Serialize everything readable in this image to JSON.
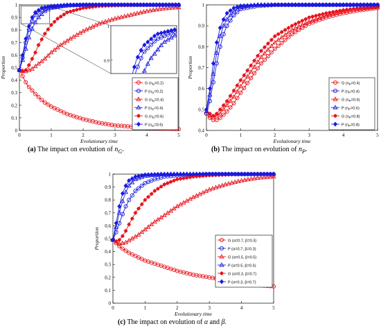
{
  "captions": [
    {
      "tag": "(a)",
      "text": "The impact on evolution of",
      "symbol": "n",
      "subscript": "G",
      "tail": "."
    },
    {
      "tag": "(b)",
      "text": "The impact on evolution of",
      "symbol": "n",
      "subscript": "P",
      "tail": "."
    },
    {
      "tag": "(c)",
      "text": "The impact on evolution of",
      "symbol": "α",
      "mid": "and",
      "symbol2": "β",
      "tail": "."
    }
  ],
  "colors": {
    "G": "#e8141c",
    "P": "#1a1adf"
  },
  "chart_data": [
    {
      "id": "a",
      "type": "line",
      "xlabel": "Evolutionary time",
      "ylabel": "Proportion",
      "xlim": [
        0,
        5
      ],
      "ylim": [
        0,
        1
      ],
      "xticks": [
        "0",
        "1",
        "2",
        "3",
        "4",
        "5"
      ],
      "yticks": [
        "0",
        "0.1",
        "0.2",
        "0.3",
        "0.4",
        "0.5",
        "0.6",
        "0.7",
        "0.8",
        "0.9",
        "1"
      ],
      "grid": false,
      "legend_position": "bottom-right",
      "series": [
        {
          "name": "G (n_G=0.2)",
          "label": "G (n",
          "sub": "G",
          "tail": "=0.2)",
          "group": "G",
          "marker": "circle",
          "x": [
            0,
            0.25,
            0.5,
            0.75,
            1,
            1.5,
            2,
            2.5,
            3,
            3.5,
            4,
            4.5,
            5
          ],
          "values": [
            0.48,
            0.36,
            0.29,
            0.23,
            0.19,
            0.13,
            0.09,
            0.06,
            0.04,
            0.03,
            0.02,
            0.015,
            0.01
          ]
        },
        {
          "name": "P (n_G=0.2)",
          "label": "P (n",
          "sub": "G",
          "tail": "=0.2)",
          "group": "P",
          "marker": "circle",
          "x": [
            0,
            0.1,
            0.2,
            0.3,
            0.4,
            0.5,
            0.7,
            1,
            1.5,
            2,
            3,
            4,
            5
          ],
          "values": [
            0.48,
            0.58,
            0.7,
            0.8,
            0.87,
            0.92,
            0.96,
            0.985,
            0.995,
            1,
            1,
            1,
            1
          ]
        },
        {
          "name": "G (n_G=0.4)",
          "label": "G (n",
          "sub": "G",
          "tail": "=0.4)",
          "group": "G",
          "marker": "triangle",
          "x": [
            0,
            0.2,
            0.4,
            0.6,
            0.8,
            1,
            1.3,
            1.6,
            2,
            2.5,
            3,
            3.5,
            4,
            4.5,
            5
          ],
          "values": [
            0.48,
            0.47,
            0.49,
            0.53,
            0.57,
            0.62,
            0.68,
            0.73,
            0.79,
            0.85,
            0.89,
            0.92,
            0.95,
            0.97,
            0.98
          ]
        },
        {
          "name": "P (n_G=0.4)",
          "label": "P (n",
          "sub": "G",
          "tail": "=0.4)",
          "group": "P",
          "marker": "triangle",
          "x": [
            0,
            0.1,
            0.2,
            0.3,
            0.4,
            0.5,
            0.6,
            0.8,
            1,
            1.5,
            2,
            3,
            4,
            5
          ],
          "values": [
            0.48,
            0.56,
            0.65,
            0.74,
            0.81,
            0.86,
            0.9,
            0.95,
            0.975,
            0.995,
            1,
            1,
            1,
            1
          ]
        },
        {
          "name": "G (n_G=0.6)",
          "label": "G (n",
          "sub": "G",
          "tail": "=0.6)",
          "group": "G",
          "marker": "star",
          "x": [
            0,
            0.1,
            0.2,
            0.3,
            0.4,
            0.5,
            0.6,
            0.8,
            1,
            1.2,
            1.5,
            2,
            2.5,
            3,
            4,
            5
          ],
          "values": [
            0.48,
            0.47,
            0.48,
            0.52,
            0.57,
            0.62,
            0.68,
            0.77,
            0.84,
            0.89,
            0.94,
            0.975,
            0.99,
            0.995,
            1,
            1
          ]
        },
        {
          "name": "P (n_G=0.6)",
          "label": "P (n",
          "sub": "G",
          "tail": "=0.6)",
          "group": "P",
          "marker": "diamond",
          "x": [
            0,
            0.1,
            0.2,
            0.3,
            0.4,
            0.5,
            0.7,
            1,
            1.5,
            2,
            3,
            4,
            5
          ],
          "values": [
            0.48,
            0.6,
            0.73,
            0.83,
            0.9,
            0.94,
            0.975,
            0.99,
            1,
            1,
            1,
            1,
            1
          ]
        }
      ]
    },
    {
      "id": "b",
      "type": "line",
      "xlabel": "Evolutionary time",
      "ylabel": "Proportion",
      "xlim": [
        0,
        5
      ],
      "ylim": [
        0.4,
        1
      ],
      "xticks": [
        "0",
        "1",
        "2",
        "3",
        "4",
        "5"
      ],
      "yticks": [
        "0.4",
        "0.5",
        "0.6",
        "0.7",
        "0.8",
        "0.9",
        "1"
      ],
      "grid": false,
      "legend_position": "bottom-right",
      "series": [
        {
          "name": "G (n_P=0.4)",
          "label": "G (n",
          "sub": "P",
          "tail": "=0.4)",
          "group": "G",
          "marker": "circle",
          "x": [
            0,
            0.1,
            0.2,
            0.3,
            0.4,
            0.6,
            0.8,
            1,
            1.3,
            1.6,
            2,
            2.5,
            3,
            3.5,
            4,
            4.5,
            5
          ],
          "values": [
            0.48,
            0.46,
            0.45,
            0.45,
            0.46,
            0.49,
            0.53,
            0.58,
            0.65,
            0.72,
            0.79,
            0.86,
            0.91,
            0.94,
            0.96,
            0.975,
            0.985
          ]
        },
        {
          "name": "P (n_P=0.4)",
          "label": "P (n",
          "sub": "P",
          "tail": "=0.4)",
          "group": "P",
          "marker": "circle",
          "x": [
            0,
            0.1,
            0.2,
            0.3,
            0.4,
            0.5,
            0.6,
            0.8,
            1,
            1.5,
            2,
            3,
            4,
            5
          ],
          "values": [
            0.48,
            0.54,
            0.63,
            0.72,
            0.8,
            0.86,
            0.9,
            0.95,
            0.98,
            0.995,
            1,
            1,
            1,
            1
          ]
        },
        {
          "name": "G (n_P=0.6)",
          "label": "G (n",
          "sub": "P",
          "tail": "=0.6)",
          "group": "G",
          "marker": "triangle",
          "x": [
            0,
            0.1,
            0.2,
            0.3,
            0.4,
            0.6,
            0.8,
            1,
            1.3,
            1.6,
            2,
            2.5,
            3,
            3.5,
            4,
            4.5,
            5
          ],
          "values": [
            0.49,
            0.47,
            0.465,
            0.47,
            0.48,
            0.52,
            0.56,
            0.61,
            0.68,
            0.75,
            0.82,
            0.88,
            0.92,
            0.95,
            0.97,
            0.98,
            0.99
          ]
        },
        {
          "name": "P (n_P=0.6)",
          "label": "P (n",
          "sub": "P",
          "tail": "=0.6)",
          "group": "P",
          "marker": "triangle",
          "x": [
            0,
            0.1,
            0.2,
            0.3,
            0.4,
            0.5,
            0.6,
            0.8,
            1,
            1.5,
            2,
            3,
            4,
            5
          ],
          "values": [
            0.49,
            0.57,
            0.67,
            0.77,
            0.85,
            0.9,
            0.93,
            0.97,
            0.99,
            1,
            1,
            1,
            1,
            1
          ]
        },
        {
          "name": "G (n_P=0.8)",
          "label": "G (n",
          "sub": "P",
          "tail": "=0.8)",
          "group": "G",
          "marker": "star",
          "x": [
            0,
            0.1,
            0.2,
            0.3,
            0.4,
            0.6,
            0.8,
            1,
            1.3,
            1.6,
            2,
            2.5,
            3,
            3.5,
            4,
            4.5,
            5
          ],
          "values": [
            0.5,
            0.48,
            0.47,
            0.48,
            0.5,
            0.54,
            0.59,
            0.64,
            0.71,
            0.78,
            0.85,
            0.9,
            0.94,
            0.96,
            0.975,
            0.985,
            0.99
          ]
        },
        {
          "name": "P (n_P=0.8)",
          "label": "P (n",
          "sub": "P",
          "tail": "=0.8)",
          "group": "P",
          "marker": "diamond",
          "x": [
            0,
            0.1,
            0.2,
            0.3,
            0.4,
            0.5,
            0.6,
            0.8,
            1,
            1.5,
            2,
            3,
            4,
            5
          ],
          "values": [
            0.5,
            0.6,
            0.72,
            0.82,
            0.89,
            0.93,
            0.96,
            0.985,
            0.995,
            1,
            1,
            1,
            1,
            1
          ]
        }
      ]
    },
    {
      "id": "c",
      "type": "line",
      "xlabel": "Evolutionary time",
      "ylabel": "Proportion",
      "xlim": [
        0,
        5
      ],
      "ylim": [
        0,
        1
      ],
      "xticks": [
        "0",
        "1",
        "2",
        "3",
        "4",
        "5"
      ],
      "yticks": [
        "0",
        "0.1",
        "0.2",
        "0.3",
        "0.4",
        "0.5",
        "0.6",
        "0.7",
        "0.8",
        "0.9",
        "1"
      ],
      "grid": false,
      "legend_position": "bottom-right",
      "series": [
        {
          "name": "G (α=0.7, β=0.3)",
          "label": "G (α=0.7, β=0.3)",
          "group": "G",
          "marker": "circle",
          "x": [
            0,
            0.25,
            0.5,
            0.75,
            1,
            1.5,
            2,
            2.5,
            3,
            3.5,
            4,
            4.5,
            5
          ],
          "values": [
            0.49,
            0.43,
            0.39,
            0.36,
            0.33,
            0.29,
            0.25,
            0.22,
            0.2,
            0.18,
            0.16,
            0.14,
            0.13
          ]
        },
        {
          "name": "P (α=0.7, β=0.3)",
          "label": "P (α=0.7, β=0.3)",
          "group": "P",
          "marker": "circle",
          "x": [
            0,
            0.1,
            0.2,
            0.3,
            0.4,
            0.5,
            0.7,
            1,
            1.3,
            1.6,
            2,
            3,
            4,
            5
          ],
          "values": [
            0.49,
            0.55,
            0.62,
            0.69,
            0.75,
            0.8,
            0.87,
            0.93,
            0.96,
            0.98,
            0.99,
            1,
            1,
            1
          ]
        },
        {
          "name": "G (α=0.5, β=0.5)",
          "label": "G (α=0.5, β=0.5)",
          "group": "G",
          "marker": "triangle",
          "x": [
            0,
            0.2,
            0.4,
            0.6,
            0.8,
            1,
            1.3,
            1.6,
            2,
            2.5,
            3,
            3.5,
            4,
            4.5,
            5
          ],
          "values": [
            0.49,
            0.46,
            0.47,
            0.5,
            0.53,
            0.57,
            0.63,
            0.68,
            0.75,
            0.82,
            0.88,
            0.92,
            0.95,
            0.97,
            0.98
          ]
        },
        {
          "name": "P (α=0.5, β=0.5)",
          "label": "P (α=0.5, β=0.5)",
          "group": "P",
          "marker": "triangle",
          "x": [
            0,
            0.1,
            0.2,
            0.3,
            0.4,
            0.5,
            0.7,
            1,
            1.5,
            2,
            3,
            4,
            5
          ],
          "values": [
            0.49,
            0.59,
            0.7,
            0.79,
            0.86,
            0.91,
            0.96,
            0.985,
            0.998,
            1,
            1,
            1,
            1
          ]
        },
        {
          "name": "G (α=0.3, β=0.7)",
          "label": "G (α=0.3, β=0.7)",
          "group": "G",
          "marker": "star",
          "x": [
            0,
            0.1,
            0.2,
            0.3,
            0.4,
            0.5,
            0.7,
            1,
            1.3,
            1.6,
            2,
            2.5,
            3,
            4,
            5
          ],
          "values": [
            0.49,
            0.48,
            0.49,
            0.52,
            0.56,
            0.61,
            0.7,
            0.8,
            0.87,
            0.92,
            0.96,
            0.98,
            0.99,
            1,
            1
          ]
        },
        {
          "name": "P (α=0.3, β=0.7)",
          "label": "P (α=0.3, β=0.7)",
          "group": "P",
          "marker": "diamond",
          "x": [
            0,
            0.1,
            0.2,
            0.3,
            0.4,
            0.5,
            0.7,
            1,
            1.5,
            2,
            3,
            4,
            5
          ],
          "values": [
            0.49,
            0.62,
            0.75,
            0.85,
            0.91,
            0.95,
            0.98,
            0.995,
            1,
            1,
            1,
            1,
            1
          ]
        }
      ]
    }
  ]
}
